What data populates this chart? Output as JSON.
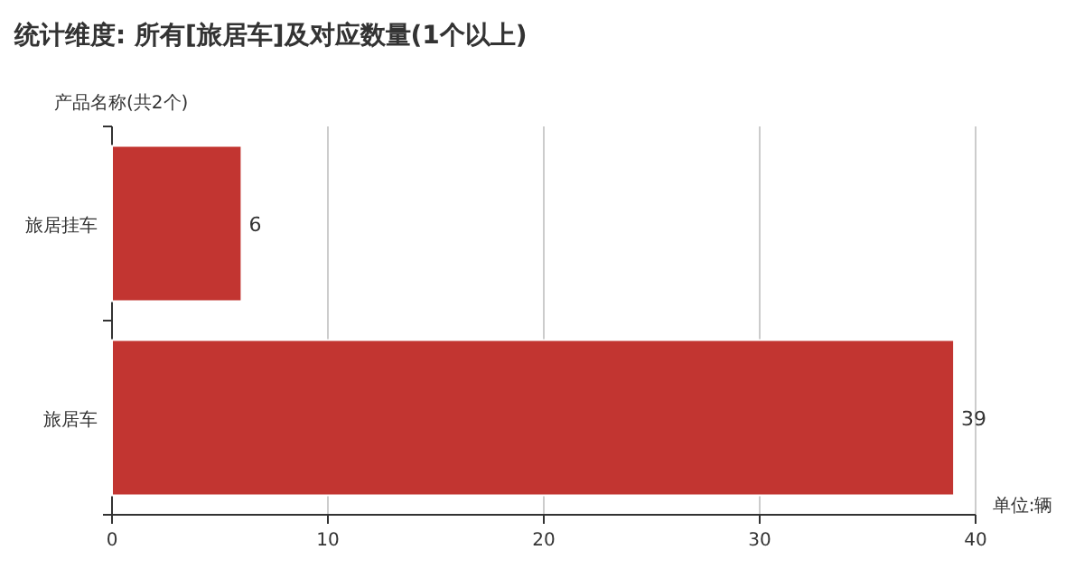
{
  "chart_data": {
    "type": "bar",
    "orientation": "horizontal",
    "title": "统计维度: 所有[旅居车]及对应数量(1个以上)",
    "ylabel": "产品名称(共2个)",
    "xlabel": "单位:辆",
    "categories": [
      "旅居挂车",
      "旅居车"
    ],
    "values": [
      6,
      39
    ],
    "color": "#c23531",
    "xlim": [
      0,
      40
    ],
    "xticks": [
      0,
      10,
      20,
      30,
      40
    ],
    "grid": "x",
    "data_labels": true
  }
}
